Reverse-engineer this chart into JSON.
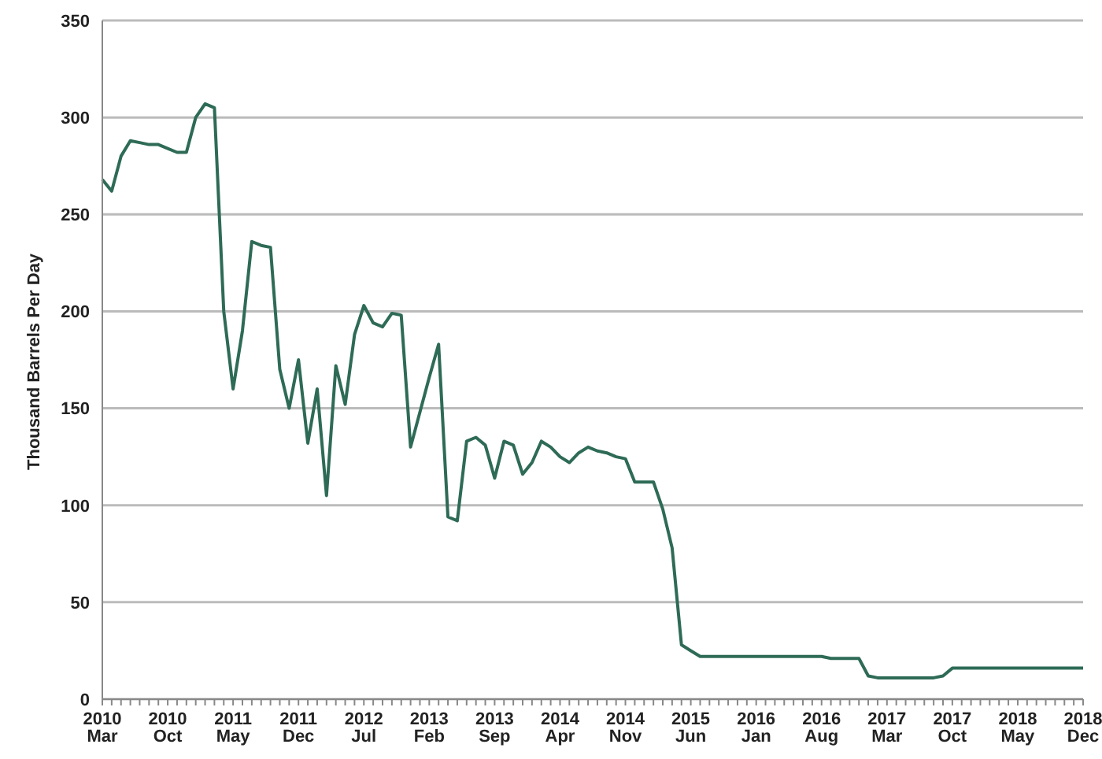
{
  "chart_data": {
    "type": "line",
    "ylabel": "Thousand Barrels Per Day",
    "categories": [
      "2010 Mar",
      null,
      null,
      null,
      null,
      null,
      null,
      "2010 Oct",
      null,
      null,
      null,
      null,
      null,
      null,
      "2011 May",
      null,
      null,
      null,
      null,
      null,
      null,
      "2011 Dec",
      null,
      null,
      null,
      null,
      null,
      null,
      "2012 Jul",
      null,
      null,
      null,
      null,
      null,
      null,
      "2013 Feb",
      null,
      null,
      null,
      null,
      null,
      null,
      "2013 Sep",
      null,
      null,
      null,
      null,
      null,
      null,
      "2014 Apr",
      null,
      null,
      null,
      null,
      null,
      null,
      "2014 Nov",
      null,
      null,
      null,
      null,
      null,
      null,
      "2015 Jun",
      null,
      null,
      null,
      null,
      null,
      null,
      "2016 Jan",
      null,
      null,
      null,
      null,
      null,
      null,
      "2016 Aug",
      null,
      null,
      null,
      null,
      null,
      null,
      "2017 Mar",
      null,
      null,
      null,
      null,
      null,
      null,
      "2017 Oct",
      null,
      null,
      null,
      null,
      null,
      null,
      "2018 May",
      null,
      null,
      null,
      null,
      null,
      null,
      "2018 Dec"
    ],
    "series": [
      {
        "color": "#2e6b57",
        "values": [
          268,
          262,
          280,
          288,
          287,
          286,
          286,
          284,
          282,
          282,
          300,
          307,
          305,
          200,
          160,
          190,
          236,
          234,
          233,
          170,
          150,
          175,
          132,
          160,
          105,
          172,
          152,
          188,
          203,
          194,
          192,
          199,
          198,
          130,
          148,
          166,
          183,
          94,
          92,
          133,
          135,
          131,
          114,
          133,
          131,
          116,
          122,
          133,
          130,
          125,
          122,
          127,
          130,
          128,
          127,
          125,
          124,
          112,
          112,
          112,
          98,
          78,
          28,
          25,
          22,
          22,
          22,
          22,
          22,
          22,
          22,
          22,
          22,
          22,
          22,
          22,
          22,
          22,
          21,
          21,
          21,
          21,
          12,
          11,
          11,
          11,
          11,
          11,
          11,
          11,
          12,
          16,
          16,
          16,
          16,
          16,
          16,
          16,
          16,
          16,
          16,
          16,
          16,
          16,
          16,
          16
        ]
      }
    ],
    "ylim": [
      0,
      350
    ],
    "yticks": [
      0,
      50,
      100,
      150,
      200,
      250,
      300,
      350
    ],
    "grid": "y",
    "legend": false,
    "marker": "none",
    "line_style": "solid"
  }
}
